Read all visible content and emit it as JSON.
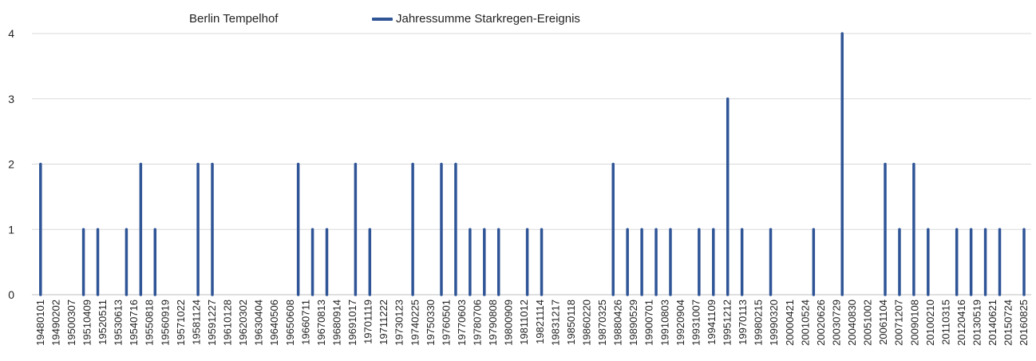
{
  "chart_data": {
    "type": "bar",
    "title": "Berlin Tempelhof",
    "series_name": "Jahressumme  Starkregen-Ereignis",
    "color": "#2f5597",
    "grid_color": "#d9d9d9",
    "ylim": [
      0,
      4
    ],
    "yticks": [
      0,
      1,
      2,
      3,
      4
    ],
    "xlim": [
      1948.0,
      2016.8
    ],
    "xticks": [
      "19480101",
      "19490202",
      "19500307",
      "19510409",
      "19520511",
      "19530613",
      "19540716",
      "19550818",
      "19560919",
      "19571022",
      "19581124",
      "19591227",
      "19610128",
      "19620302",
      "19630404",
      "19640506",
      "19650608",
      "19660711",
      "19670813",
      "19680914",
      "19691017",
      "19701119",
      "19711222",
      "19730123",
      "19740225",
      "19750330",
      "19760501",
      "19770603",
      "19780706",
      "19790808",
      "19800909",
      "19811012",
      "19821114",
      "19831217",
      "19850118",
      "19860220",
      "19870325",
      "19880426",
      "19890529",
      "19900701",
      "19910803",
      "19920904",
      "19931007",
      "19941109",
      "19951212",
      "19970113",
      "19980215",
      "19990320",
      "20000421",
      "20010524",
      "20020626",
      "20030729",
      "20040830",
      "20051002",
      "20061104",
      "20071207",
      "20090108",
      "20100210",
      "20110315",
      "20120416",
      "20130519",
      "20140621",
      "20150724",
      "20160825"
    ],
    "points": [
      {
        "x": 1948.1,
        "y": 2
      },
      {
        "x": 1951.1,
        "y": 1
      },
      {
        "x": 1952.1,
        "y": 1
      },
      {
        "x": 1954.1,
        "y": 1
      },
      {
        "x": 1955.1,
        "y": 2
      },
      {
        "x": 1956.1,
        "y": 1
      },
      {
        "x": 1959.1,
        "y": 2
      },
      {
        "x": 1960.1,
        "y": 2
      },
      {
        "x": 1966.1,
        "y": 2
      },
      {
        "x": 1967.1,
        "y": 1
      },
      {
        "x": 1968.1,
        "y": 1
      },
      {
        "x": 1970.1,
        "y": 2
      },
      {
        "x": 1971.1,
        "y": 1
      },
      {
        "x": 1974.1,
        "y": 2
      },
      {
        "x": 1976.1,
        "y": 2
      },
      {
        "x": 1977.1,
        "y": 2
      },
      {
        "x": 1978.1,
        "y": 1
      },
      {
        "x": 1979.1,
        "y": 1
      },
      {
        "x": 1980.1,
        "y": 1
      },
      {
        "x": 1982.1,
        "y": 1
      },
      {
        "x": 1983.1,
        "y": 1
      },
      {
        "x": 1988.1,
        "y": 2
      },
      {
        "x": 1989.1,
        "y": 1
      },
      {
        "x": 1990.1,
        "y": 1
      },
      {
        "x": 1991.1,
        "y": 1
      },
      {
        "x": 1992.1,
        "y": 1
      },
      {
        "x": 1994.1,
        "y": 1
      },
      {
        "x": 1995.1,
        "y": 1
      },
      {
        "x": 1996.1,
        "y": 3
      },
      {
        "x": 1997.1,
        "y": 1
      },
      {
        "x": 1999.1,
        "y": 1
      },
      {
        "x": 2002.1,
        "y": 1
      },
      {
        "x": 2004.1,
        "y": 4
      },
      {
        "x": 2007.1,
        "y": 2
      },
      {
        "x": 2008.1,
        "y": 1
      },
      {
        "x": 2009.1,
        "y": 2
      },
      {
        "x": 2010.1,
        "y": 1
      },
      {
        "x": 2012.1,
        "y": 1
      },
      {
        "x": 2013.1,
        "y": 1
      },
      {
        "x": 2014.1,
        "y": 1
      },
      {
        "x": 2015.1,
        "y": 1
      },
      {
        "x": 2018.0,
        "y": 1
      }
    ]
  }
}
